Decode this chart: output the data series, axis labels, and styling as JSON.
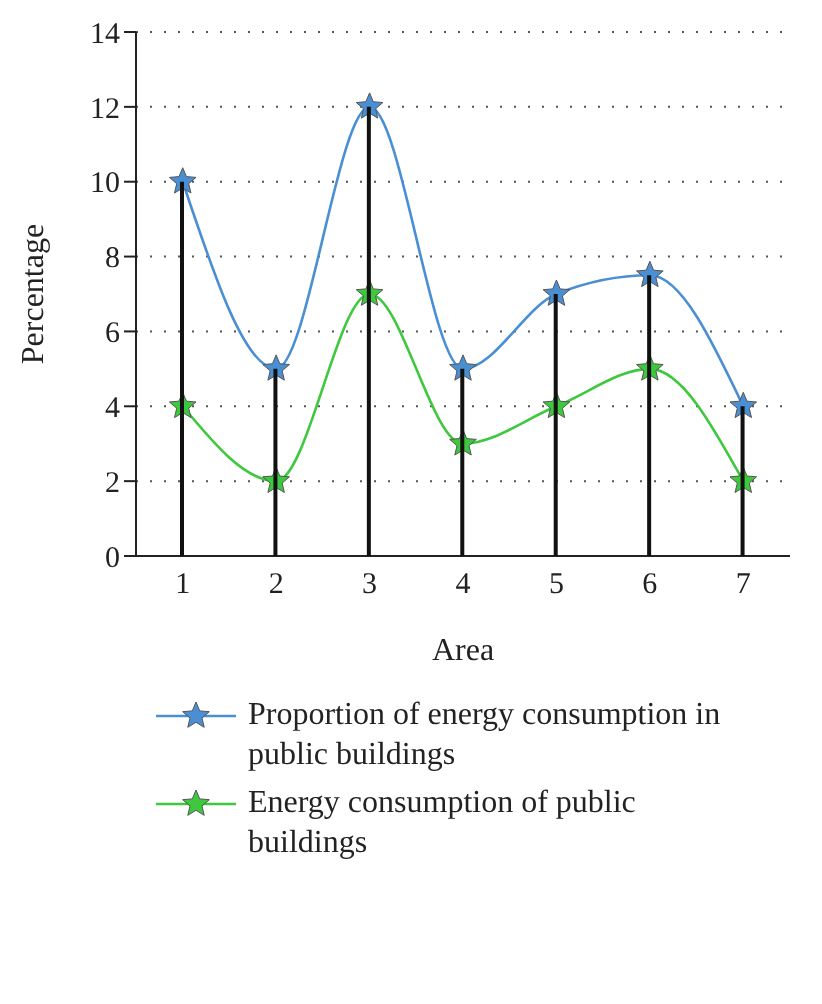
{
  "chart_data": {
    "type": "line",
    "xlabel": "Area",
    "ylabel": "Percentage",
    "x": [
      1,
      2,
      3,
      4,
      5,
      6,
      7
    ],
    "xlim": [
      0.5,
      7.5
    ],
    "xticks": [
      1,
      2,
      3,
      4,
      5,
      6,
      7
    ],
    "ylim": [
      0,
      14
    ],
    "yticks": [
      0,
      2,
      4,
      6,
      8,
      10,
      12,
      14
    ],
    "grid": "y",
    "legend": "bottom",
    "marker": "star",
    "series": [
      {
        "name": "Proportion of energy consumption in public buildings",
        "color": "#4a8fd4",
        "values": [
          10,
          5,
          12,
          5,
          7,
          7.5,
          4
        ]
      },
      {
        "name": "Energy consumption of public buildings",
        "color": "#3ec83e",
        "values": [
          4,
          2,
          7,
          3,
          4,
          5,
          2
        ]
      },
      {
        "type": "bar",
        "color": "#111111",
        "values": [
          10,
          5,
          12,
          5,
          7,
          7.5,
          4
        ]
      }
    ]
  }
}
